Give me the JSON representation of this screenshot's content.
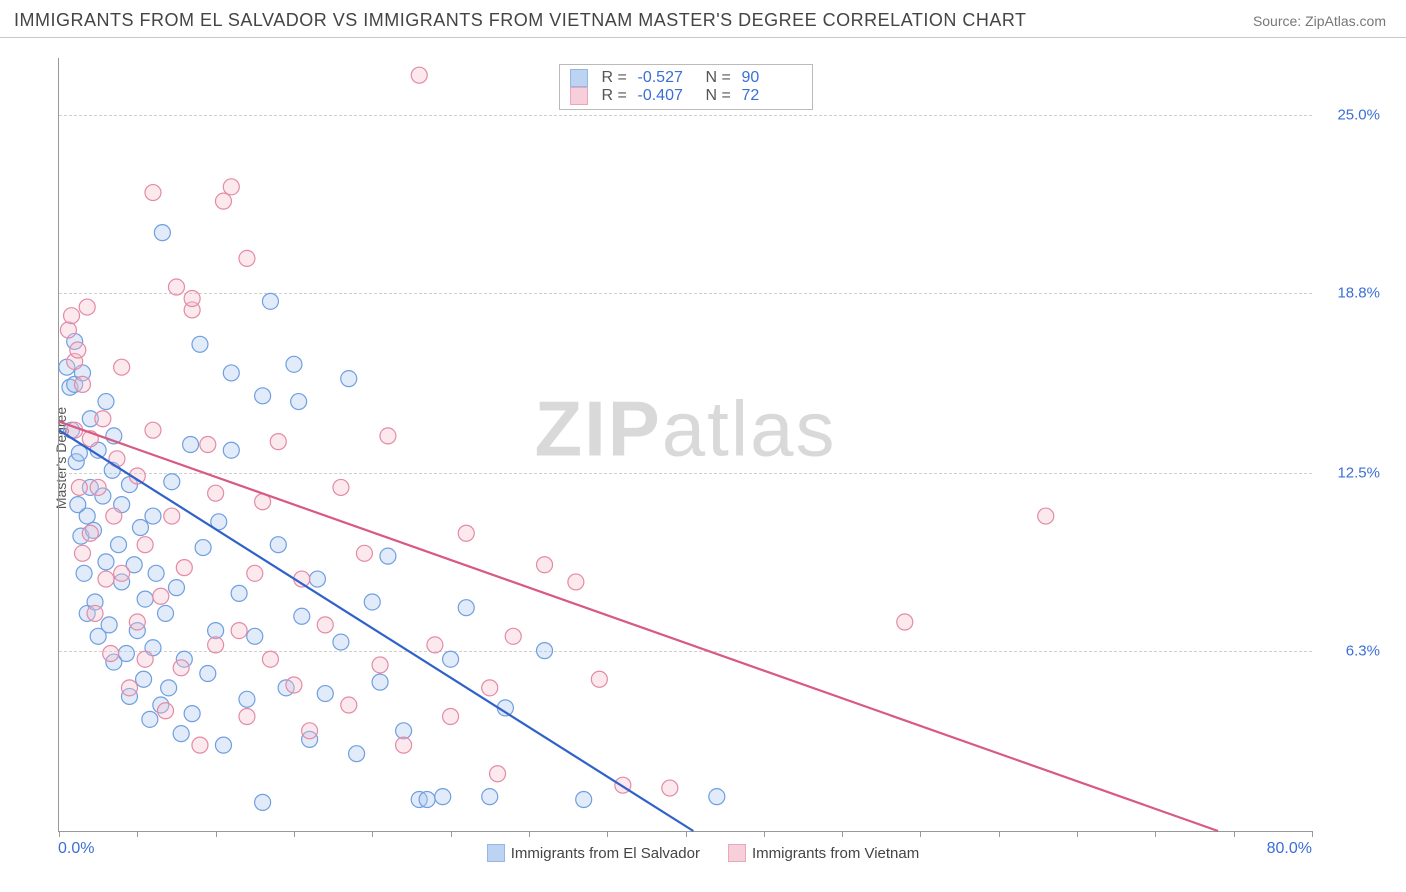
{
  "header": {
    "title": "IMMIGRANTS FROM EL SALVADOR VS IMMIGRANTS FROM VIETNAM MASTER'S DEGREE CORRELATION CHART",
    "source_prefix": "Source: ",
    "source_name": "ZipAtlas.com"
  },
  "watermark": {
    "part1": "ZIP",
    "part2": "atlas"
  },
  "chart": {
    "type": "scatter",
    "ylabel": "Master's Degree",
    "xlim": [
      0,
      80
    ],
    "ylim": [
      0,
      27
    ],
    "x_min_label": "0.0%",
    "x_max_label": "80.0%",
    "y_ticks": [
      {
        "value": 6.3,
        "label": "6.3%"
      },
      {
        "value": 12.5,
        "label": "12.5%"
      },
      {
        "value": 18.8,
        "label": "18.8%"
      },
      {
        "value": 25.0,
        "label": "25.0%"
      }
    ],
    "x_tick_count": 16,
    "background_color": "#ffffff",
    "grid_color": "#d0d0d0",
    "axis_color": "#999999",
    "tick_label_color": "#3b6fd6",
    "marker_radius": 8,
    "marker_stroke_width": 1.2,
    "marker_fill_opacity": 0.35,
    "trend_line_width": 2.2,
    "series": [
      {
        "key": "el_salvador",
        "label": "Immigrants from El Salvador",
        "stroke": "#6f9fe0",
        "fill": "#a8c5ee",
        "line_color": "#2f62c9",
        "R": "-0.527",
        "N": "90",
        "trend": {
          "x1": 0,
          "y1": 14.0,
          "x2": 40.5,
          "y2": 0
        },
        "points": [
          [
            0.5,
            16.2
          ],
          [
            0.7,
            15.5
          ],
          [
            0.8,
            14.0
          ],
          [
            1.0,
            17.1
          ],
          [
            1.0,
            15.6
          ],
          [
            1.1,
            12.9
          ],
          [
            1.2,
            11.4
          ],
          [
            1.3,
            13.2
          ],
          [
            1.4,
            10.3
          ],
          [
            1.5,
            16.0
          ],
          [
            1.6,
            9.0
          ],
          [
            1.8,
            11.0
          ],
          [
            1.8,
            7.6
          ],
          [
            2.0,
            14.4
          ],
          [
            2.0,
            12.0
          ],
          [
            2.2,
            10.5
          ],
          [
            2.3,
            8.0
          ],
          [
            2.5,
            13.3
          ],
          [
            2.5,
            6.8
          ],
          [
            2.8,
            11.7
          ],
          [
            3.0,
            9.4
          ],
          [
            3.0,
            15.0
          ],
          [
            3.2,
            7.2
          ],
          [
            3.4,
            12.6
          ],
          [
            3.5,
            13.8
          ],
          [
            3.5,
            5.9
          ],
          [
            3.8,
            10.0
          ],
          [
            4.0,
            8.7
          ],
          [
            4.0,
            11.4
          ],
          [
            4.3,
            6.2
          ],
          [
            4.5,
            4.7
          ],
          [
            4.5,
            12.1
          ],
          [
            4.8,
            9.3
          ],
          [
            5.0,
            7.0
          ],
          [
            5.2,
            10.6
          ],
          [
            5.4,
            5.3
          ],
          [
            5.5,
            8.1
          ],
          [
            5.8,
            3.9
          ],
          [
            6.0,
            11.0
          ],
          [
            6.0,
            6.4
          ],
          [
            6.2,
            9.0
          ],
          [
            6.5,
            4.4
          ],
          [
            6.6,
            20.9
          ],
          [
            6.8,
            7.6
          ],
          [
            7.0,
            5.0
          ],
          [
            7.2,
            12.2
          ],
          [
            7.5,
            8.5
          ],
          [
            7.8,
            3.4
          ],
          [
            8.0,
            6.0
          ],
          [
            8.4,
            13.5
          ],
          [
            8.5,
            4.1
          ],
          [
            9.0,
            17.0
          ],
          [
            9.2,
            9.9
          ],
          [
            9.5,
            5.5
          ],
          [
            10.0,
            7.0
          ],
          [
            10.2,
            10.8
          ],
          [
            10.5,
            3.0
          ],
          [
            11.0,
            16.0
          ],
          [
            11.0,
            13.3
          ],
          [
            11.5,
            8.3
          ],
          [
            12.0,
            4.6
          ],
          [
            12.5,
            6.8
          ],
          [
            13.0,
            15.2
          ],
          [
            13.0,
            1.0
          ],
          [
            13.5,
            18.5
          ],
          [
            14.0,
            10.0
          ],
          [
            14.5,
            5.0
          ],
          [
            15.0,
            16.3
          ],
          [
            15.3,
            15.0
          ],
          [
            15.5,
            7.5
          ],
          [
            16.0,
            3.2
          ],
          [
            16.5,
            8.8
          ],
          [
            17.0,
            4.8
          ],
          [
            18.0,
            6.6
          ],
          [
            18.5,
            15.8
          ],
          [
            19.0,
            2.7
          ],
          [
            20.0,
            8.0
          ],
          [
            20.5,
            5.2
          ],
          [
            21.0,
            9.6
          ],
          [
            22.0,
            3.5
          ],
          [
            23.0,
            1.1
          ],
          [
            23.5,
            1.1
          ],
          [
            24.5,
            1.2
          ],
          [
            25.0,
            6.0
          ],
          [
            26.0,
            7.8
          ],
          [
            27.5,
            1.2
          ],
          [
            28.5,
            4.3
          ],
          [
            31.0,
            6.3
          ],
          [
            33.5,
            1.1
          ],
          [
            42.0,
            1.2
          ]
        ]
      },
      {
        "key": "vietnam",
        "label": "Immigrants from Vietnam",
        "stroke": "#e48aa6",
        "fill": "#f4bfcf",
        "line_color": "#d85a82",
        "R": "-0.407",
        "N": "72",
        "trend": {
          "x1": 0,
          "y1": 14.3,
          "x2": 74,
          "y2": 0
        },
        "points": [
          [
            0.6,
            17.5
          ],
          [
            0.8,
            18.0
          ],
          [
            1.0,
            16.4
          ],
          [
            1.0,
            14.0
          ],
          [
            1.2,
            16.8
          ],
          [
            1.3,
            12.0
          ],
          [
            1.5,
            15.6
          ],
          [
            1.5,
            9.7
          ],
          [
            1.8,
            18.3
          ],
          [
            2.0,
            13.7
          ],
          [
            2.0,
            10.4
          ],
          [
            2.3,
            7.6
          ],
          [
            2.5,
            12.0
          ],
          [
            2.8,
            14.4
          ],
          [
            3.0,
            8.8
          ],
          [
            3.3,
            6.2
          ],
          [
            3.5,
            11.0
          ],
          [
            3.7,
            13.0
          ],
          [
            4.0,
            16.2
          ],
          [
            4.0,
            9.0
          ],
          [
            4.5,
            5.0
          ],
          [
            5.0,
            12.4
          ],
          [
            5.0,
            7.3
          ],
          [
            5.5,
            10.0
          ],
          [
            5.5,
            6.0
          ],
          [
            6.0,
            22.3
          ],
          [
            6.0,
            14.0
          ],
          [
            6.5,
            8.2
          ],
          [
            6.8,
            4.2
          ],
          [
            7.2,
            11.0
          ],
          [
            7.5,
            19.0
          ],
          [
            7.8,
            5.7
          ],
          [
            8.0,
            9.2
          ],
          [
            8.5,
            18.2
          ],
          [
            8.5,
            18.6
          ],
          [
            9.0,
            3.0
          ],
          [
            9.5,
            13.5
          ],
          [
            10.0,
            6.5
          ],
          [
            10.0,
            11.8
          ],
          [
            10.5,
            22.0
          ],
          [
            11.0,
            22.5
          ],
          [
            11.5,
            7.0
          ],
          [
            12.0,
            20.0
          ],
          [
            12.0,
            4.0
          ],
          [
            12.5,
            9.0
          ],
          [
            13.0,
            11.5
          ],
          [
            13.5,
            6.0
          ],
          [
            14.0,
            13.6
          ],
          [
            15.0,
            5.1
          ],
          [
            15.5,
            8.8
          ],
          [
            16.0,
            3.5
          ],
          [
            17.0,
            7.2
          ],
          [
            18.0,
            12.0
          ],
          [
            18.5,
            4.4
          ],
          [
            19.5,
            9.7
          ],
          [
            20.5,
            5.8
          ],
          [
            21.0,
            13.8
          ],
          [
            22.0,
            3.0
          ],
          [
            23.0,
            26.4
          ],
          [
            24.0,
            6.5
          ],
          [
            25.0,
            4.0
          ],
          [
            26.0,
            10.4
          ],
          [
            27.5,
            5.0
          ],
          [
            28.0,
            2.0
          ],
          [
            29.0,
            6.8
          ],
          [
            31.0,
            9.3
          ],
          [
            33.0,
            8.7
          ],
          [
            34.5,
            5.3
          ],
          [
            36.0,
            1.6
          ],
          [
            39.0,
            1.5
          ],
          [
            54.0,
            7.3
          ],
          [
            63.0,
            11.0
          ]
        ]
      }
    ],
    "bottom_legend_swatch_size": 18
  },
  "top_legend": {
    "r_label": "R =",
    "n_label": "N ="
  }
}
